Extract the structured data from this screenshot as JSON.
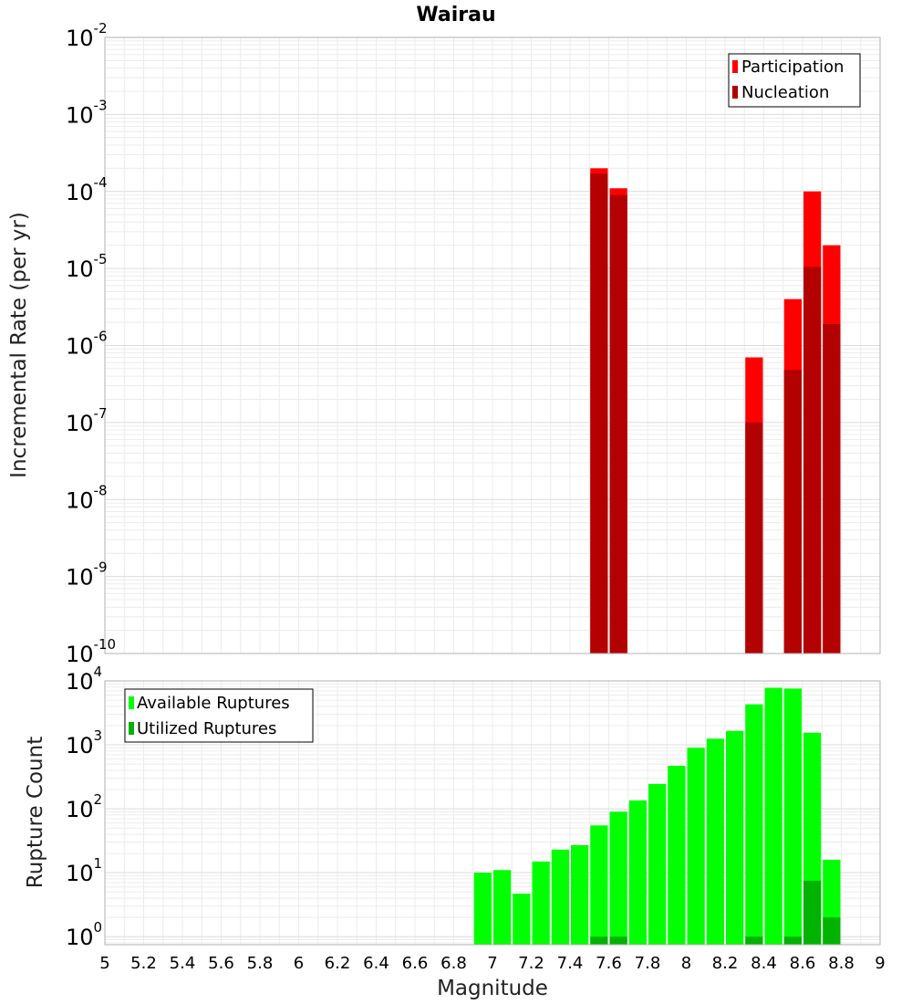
{
  "chart_data": [
    {
      "type": "bar",
      "title": "Wairau",
      "xlabel": "",
      "ylabel": "Incremental Rate (per yr)",
      "yscale": "log",
      "ylim": [
        1e-10,
        0.01
      ],
      "xlim": [
        5,
        9
      ],
      "bar_width": 0.1,
      "legend_position": "top-right",
      "grid": true,
      "series": [
        {
          "name": "Participation",
          "color": "#ff0000",
          "x": [
            7.55,
            7.65,
            8.35,
            8.55,
            8.65,
            8.75
          ],
          "values": [
            0.0002,
            0.00011,
            7e-07,
            4e-06,
            0.0001,
            2e-05
          ]
        },
        {
          "name": "Nucleation",
          "color": "#b30000",
          "x": [
            7.55,
            7.65,
            8.35,
            8.55,
            8.65,
            8.75
          ],
          "values": [
            0.00017,
            9e-05,
            1e-07,
            4.8e-07,
            1.05e-05,
            1.9e-06
          ]
        }
      ],
      "yticks": [
        {
          "base": "10",
          "exp": "-2"
        },
        {
          "base": "10",
          "exp": "-3"
        },
        {
          "base": "10",
          "exp": "-4"
        },
        {
          "base": "10",
          "exp": "-5"
        },
        {
          "base": "10",
          "exp": "-6"
        },
        {
          "base": "10",
          "exp": "-7"
        },
        {
          "base": "10",
          "exp": "-8"
        },
        {
          "base": "10",
          "exp": "-9"
        },
        {
          "base": "10",
          "exp": "-10"
        }
      ]
    },
    {
      "type": "bar",
      "title": "",
      "xlabel": "Magnitude",
      "ylabel": "Rupture Count",
      "yscale": "log",
      "ylim": [
        0.75,
        10000
      ],
      "xlim": [
        5,
        9
      ],
      "bar_width": 0.1,
      "legend_position": "top-left",
      "grid": true,
      "series": [
        {
          "name": "Available Ruptures",
          "color": "#00ff00",
          "x": [
            6.95,
            7.05,
            7.15,
            7.25,
            7.35,
            7.45,
            7.55,
            7.65,
            7.75,
            7.85,
            7.95,
            8.05,
            8.15,
            8.25,
            8.35,
            8.45,
            8.55,
            8.65,
            8.75
          ],
          "values": [
            10,
            11,
            4.7,
            15,
            23,
            27,
            55,
            90,
            135,
            245,
            470,
            900,
            1250,
            1650,
            4300,
            7800,
            7600,
            1550,
            16
          ]
        },
        {
          "name": "Utilized Ruptures",
          "color": "#00b300",
          "x": [
            7.55,
            7.65,
            8.35,
            8.55,
            8.65,
            8.75
          ],
          "values": [
            1,
            1,
            1,
            1,
            7.5,
            2
          ]
        }
      ],
      "yticks": [
        {
          "base": "10",
          "exp": "4"
        },
        {
          "base": "10",
          "exp": "3"
        },
        {
          "base": "10",
          "exp": "2"
        },
        {
          "base": "10",
          "exp": "1"
        },
        {
          "base": "10",
          "exp": "0"
        }
      ],
      "xticks": [
        "5",
        "5.2",
        "5.4",
        "5.6",
        "5.8",
        "6",
        "6.2",
        "6.4",
        "6.6",
        "6.8",
        "7",
        "7.2",
        "7.4",
        "7.6",
        "7.8",
        "8",
        "8.2",
        "8.4",
        "8.6",
        "8.8",
        "9"
      ]
    }
  ]
}
